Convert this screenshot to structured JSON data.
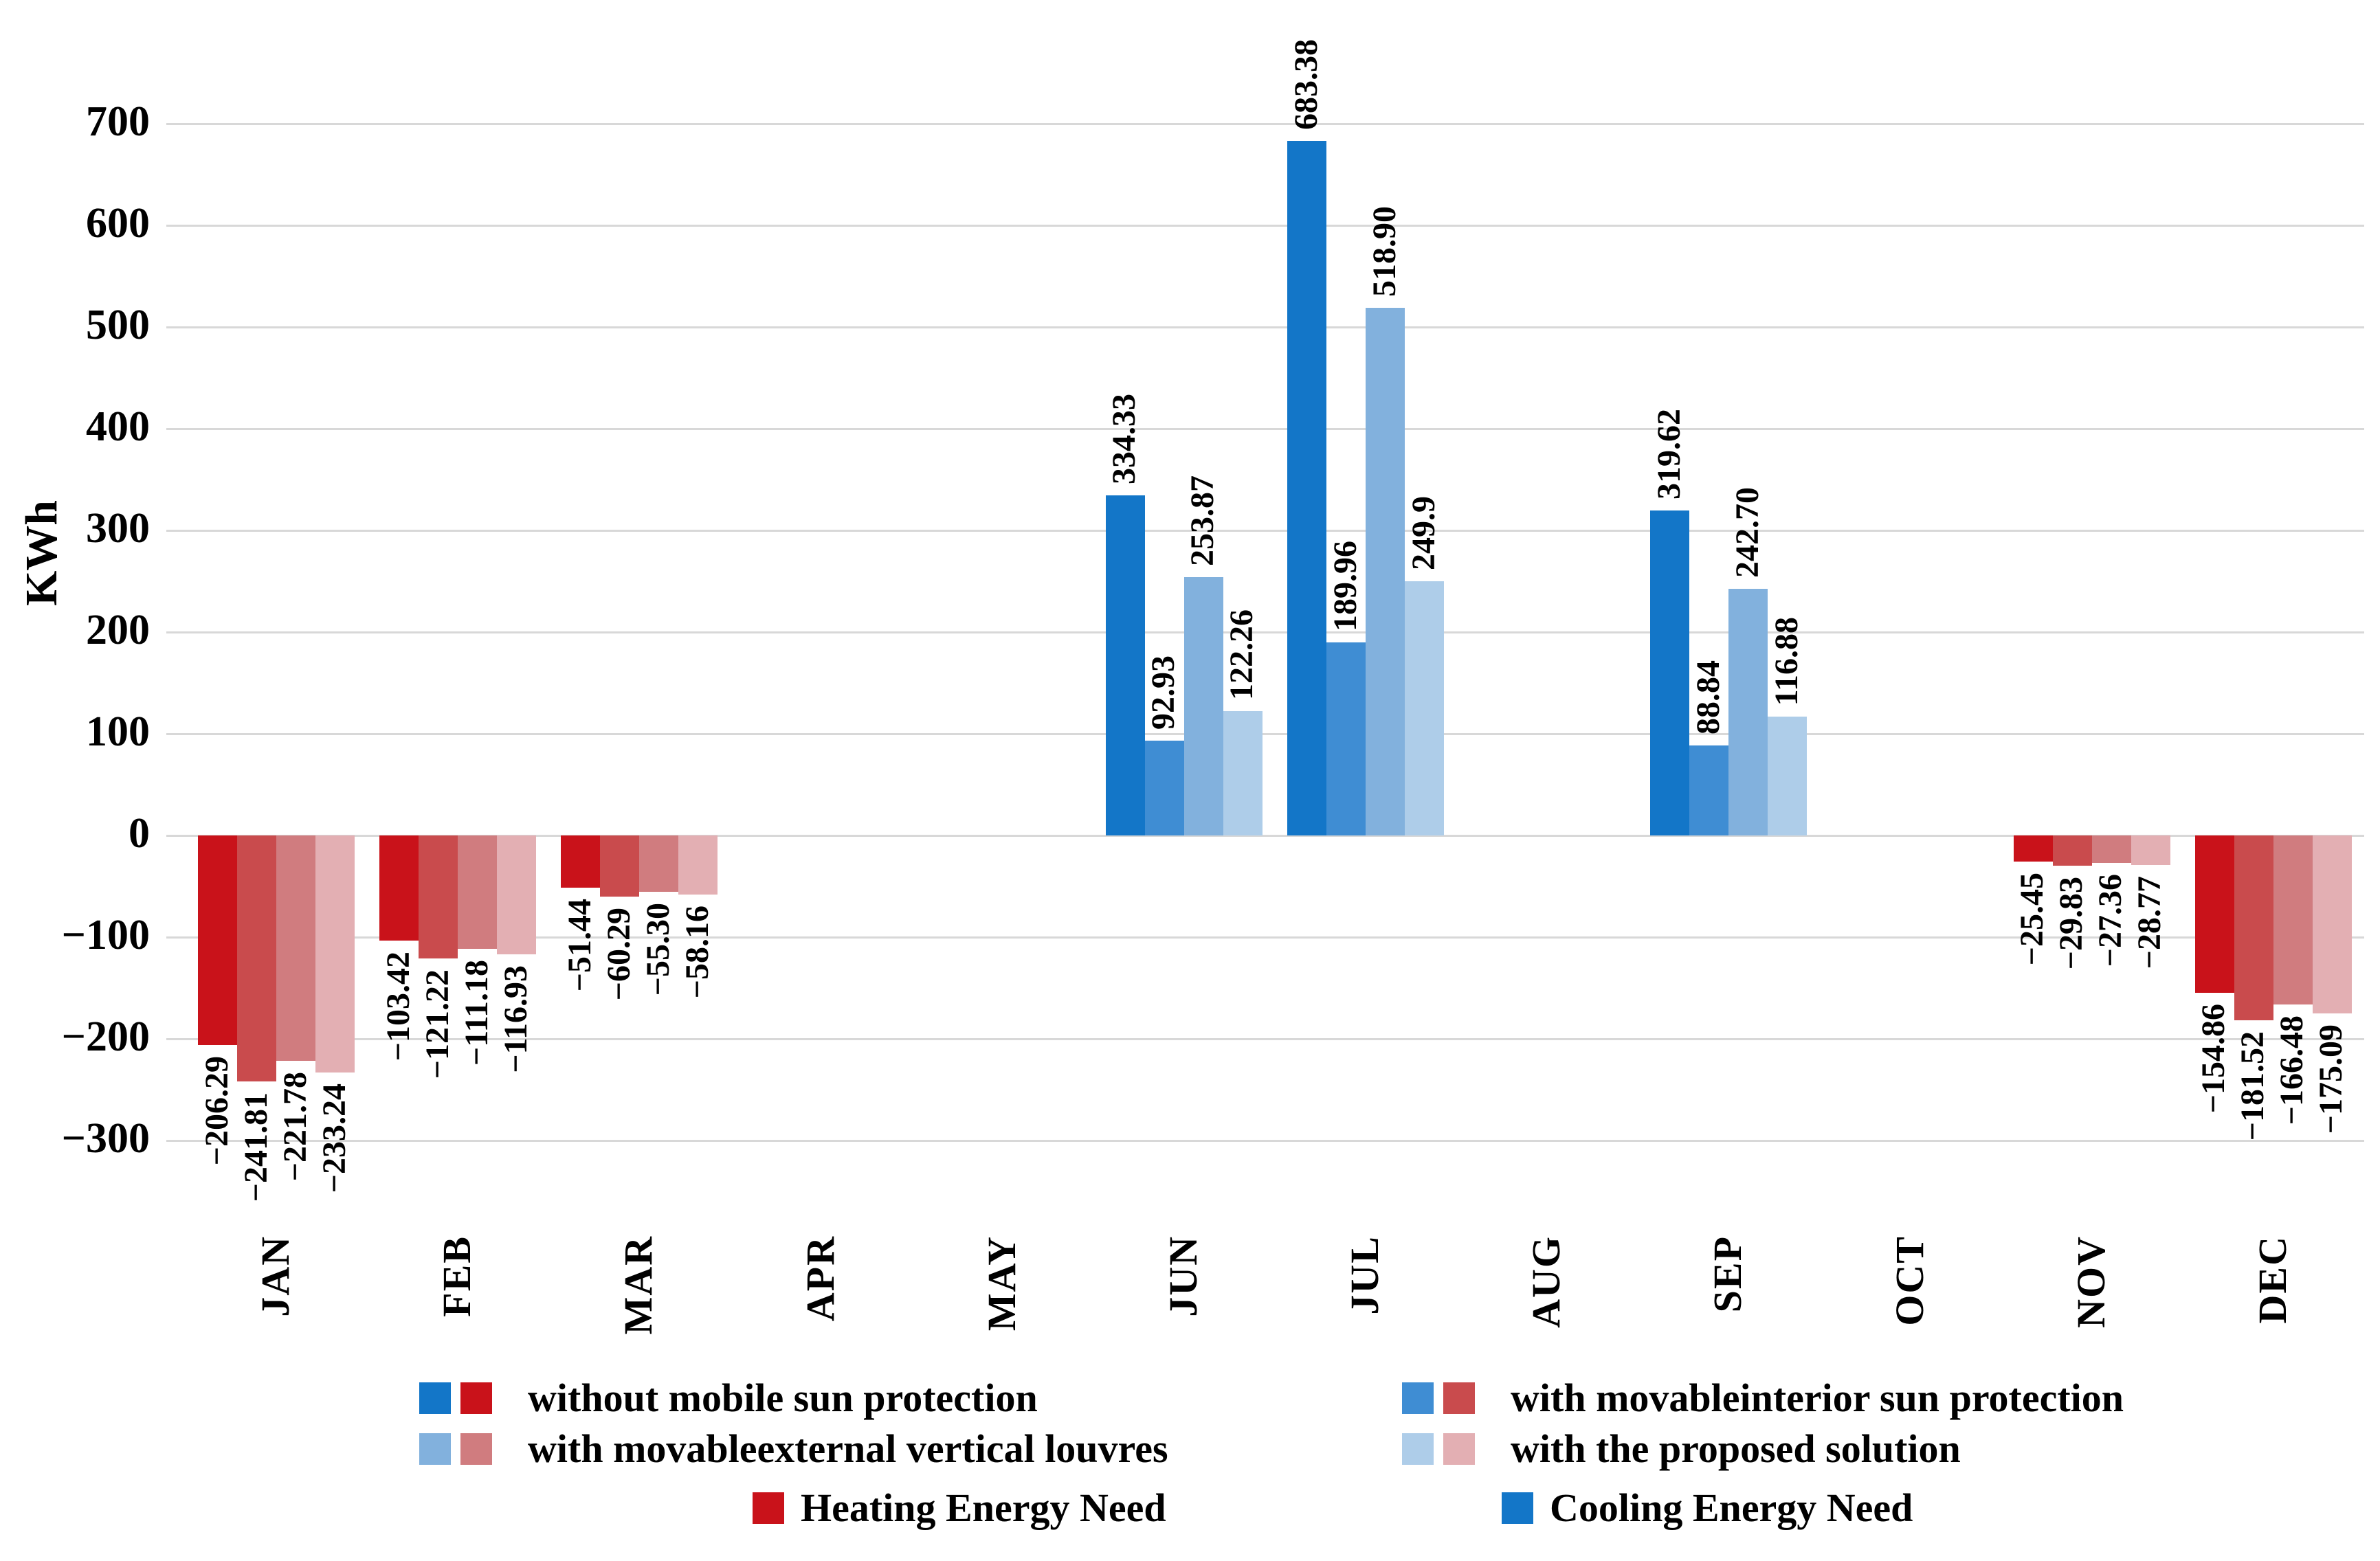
{
  "chart_data": {
    "type": "bar",
    "title": "",
    "xlabel": "",
    "ylabel": "KWh",
    "ylim": [
      -300,
      700
    ],
    "grid": true,
    "legend_position": "bottom",
    "yticks": [
      {
        "value": 700,
        "label": "700"
      },
      {
        "value": 600,
        "label": "600"
      },
      {
        "value": 500,
        "label": "500"
      },
      {
        "value": 400,
        "label": "400"
      },
      {
        "value": 300,
        "label": "300"
      },
      {
        "value": 200,
        "label": "200"
      },
      {
        "value": 100,
        "label": "100"
      },
      {
        "value": 0,
        "label": "0"
      },
      {
        "value": -100,
        "label": "−100"
      },
      {
        "value": -200,
        "label": "−200"
      },
      {
        "value": -300,
        "label": "−300"
      }
    ],
    "categories": [
      "JAN",
      "FEB",
      "MAR",
      "APR",
      "MAY",
      "JUN",
      "JUL",
      "AUG",
      "SEP",
      "OCT",
      "NOV",
      "DEC"
    ],
    "series": [
      {
        "name": "without mobile sun protection",
        "cooling_color": "#1376C8",
        "heating_color": "#C9121A",
        "values": [
          -206.29,
          -103.42,
          -51.44,
          null,
          null,
          334.33,
          683.38,
          null,
          319.62,
          null,
          -25.45,
          -154.86
        ],
        "labels": [
          "−206.29",
          "−103.42",
          "−51.44",
          null,
          null,
          "334.33",
          "683.38",
          null,
          "319.62",
          null,
          "−25.45",
          "−154.86"
        ]
      },
      {
        "name": "with movableinterior sun protection",
        "cooling_color": "#3F8DD3",
        "heating_color": "#C94B4D",
        "values": [
          -241.81,
          -121.22,
          -60.29,
          null,
          null,
          92.93,
          189.96,
          null,
          88.84,
          null,
          -29.83,
          -181.52
        ],
        "labels": [
          "−241.81",
          "−121.22",
          "−60.29",
          null,
          null,
          "92.93",
          "189.96",
          null,
          "88.84",
          null,
          "−29.83",
          "−181.52"
        ]
      },
      {
        "name": "with movableexternal vertical louvres",
        "cooling_color": "#82B1DD",
        "heating_color": "#D07C7F",
        "values": [
          -221.78,
          -111.18,
          -55.3,
          null,
          null,
          253.87,
          518.9,
          null,
          242.7,
          null,
          -27.36,
          -166.48
        ],
        "labels": [
          "−221.78",
          "−111.18",
          "−55.30",
          null,
          null,
          "253.87",
          "518.90",
          null,
          "242.70",
          null,
          "−27.36",
          "−166.48"
        ]
      },
      {
        "name": "with the proposed solution",
        "cooling_color": "#AECDE9",
        "heating_color": "#E3AFB3",
        "values": [
          -233.24,
          -116.93,
          -58.16,
          null,
          null,
          122.26,
          249.9,
          null,
          116.88,
          null,
          -28.77,
          -175.09
        ],
        "labels": [
          "−233.24",
          "−116.93",
          "−58.16",
          null,
          null,
          "122.26",
          "249.9",
          null,
          "116.88",
          null,
          "−28.77",
          "−175.09"
        ]
      }
    ],
    "measure_legend": [
      {
        "label": "Heating Energy Need",
        "color": "#C9121A"
      },
      {
        "label": "Cooling Energy Need",
        "color": "#1376C8"
      }
    ]
  }
}
